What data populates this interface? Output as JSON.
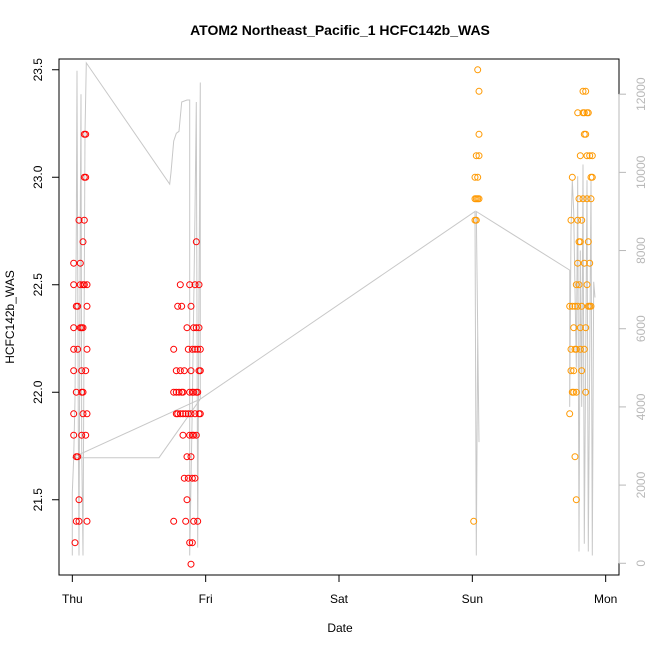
{
  "chart_data": {
    "type": "scatter",
    "title": "ATOM2 Northeast_Pacific_1 HCFC142b_WAS",
    "xlabel": "Date",
    "ylabel": "HCFC142b_WAS",
    "x_ticks": [
      "Thu",
      "Fri",
      "Sat",
      "Sun",
      "Mon"
    ],
    "x_range_days": [
      -0.1,
      4.1
    ],
    "ylim": [
      21.15,
      23.55
    ],
    "y_ticks": [
      "21.5",
      "22.0",
      "22.5",
      "23.0",
      "23.5"
    ],
    "y_tick_values": [
      21.5,
      22.0,
      22.5,
      23.0,
      23.5
    ],
    "y2lim": [
      -300,
      12900
    ],
    "y2_ticks": [
      "0",
      "2000",
      "4000",
      "6000",
      "8000",
      "10000",
      "12000"
    ],
    "y2_tick_values": [
      0,
      2000,
      4000,
      6000,
      8000,
      10000,
      12000
    ],
    "colors": {
      "red_points": "#ff0000",
      "orange_points": "#ff9900",
      "altitude_line": "#c8c8c8",
      "axis": "#000000",
      "right_axis": "#b8b8b8"
    },
    "series": [
      {
        "marker": "open-circle",
        "color": "#ff0000",
        "points": [
          [
            0.01,
            22.6
          ],
          [
            0.01,
            22.5
          ],
          [
            0.01,
            22.3
          ],
          [
            0.01,
            22.2
          ],
          [
            0.01,
            22.1
          ],
          [
            0.01,
            21.9
          ],
          [
            0.01,
            21.8
          ],
          [
            0.02,
            21.3
          ],
          [
            0.03,
            22.4
          ],
          [
            0.03,
            22.0
          ],
          [
            0.03,
            21.7
          ],
          [
            0.03,
            21.4
          ],
          [
            0.04,
            22.4
          ],
          [
            0.04,
            22.2
          ],
          [
            0.04,
            21.7
          ],
          [
            0.05,
            21.5
          ],
          [
            0.05,
            21.4
          ],
          [
            0.05,
            22.8
          ],
          [
            0.06,
            22.6
          ],
          [
            0.06,
            22.5
          ],
          [
            0.06,
            22.3
          ],
          [
            0.07,
            22.3
          ],
          [
            0.07,
            22.1
          ],
          [
            0.07,
            22.0
          ],
          [
            0.07,
            21.8
          ],
          [
            0.08,
            22.7
          ],
          [
            0.08,
            22.5
          ],
          [
            0.08,
            22.3
          ],
          [
            0.08,
            22.0
          ],
          [
            0.08,
            21.9
          ],
          [
            0.09,
            23.2
          ],
          [
            0.09,
            23.0
          ],
          [
            0.09,
            22.8
          ],
          [
            0.09,
            22.5
          ],
          [
            0.1,
            23.2
          ],
          [
            0.1,
            23.0
          ],
          [
            0.1,
            22.1
          ],
          [
            0.1,
            21.8
          ],
          [
            0.11,
            22.5
          ],
          [
            0.11,
            22.4
          ],
          [
            0.11,
            22.2
          ],
          [
            0.11,
            21.9
          ],
          [
            0.11,
            21.4
          ],
          [
            0.76,
            22.2
          ],
          [
            0.76,
            22.0
          ],
          [
            0.76,
            21.4
          ],
          [
            0.78,
            22.1
          ],
          [
            0.78,
            22.0
          ],
          [
            0.78,
            21.9
          ],
          [
            0.79,
            21.9
          ],
          [
            0.79,
            22.4
          ],
          [
            0.8,
            22.0
          ],
          [
            0.81,
            22.1
          ],
          [
            0.81,
            22.5
          ],
          [
            0.81,
            21.9
          ],
          [
            0.82,
            22.4
          ],
          [
            0.82,
            22.0
          ],
          [
            0.83,
            22.0
          ],
          [
            0.83,
            21.9
          ],
          [
            0.83,
            21.8
          ],
          [
            0.84,
            22.1
          ],
          [
            0.84,
            21.6
          ],
          [
            0.85,
            21.9
          ],
          [
            0.85,
            21.4
          ],
          [
            0.86,
            22.3
          ],
          [
            0.86,
            21.7
          ],
          [
            0.86,
            21.5
          ],
          [
            0.87,
            22.2
          ],
          [
            0.87,
            21.9
          ],
          [
            0.87,
            21.6
          ],
          [
            0.88,
            22.5
          ],
          [
            0.88,
            22.0
          ],
          [
            0.88,
            21.8
          ],
          [
            0.88,
            21.3
          ],
          [
            0.89,
            22.4
          ],
          [
            0.89,
            22.1
          ],
          [
            0.89,
            21.9
          ],
          [
            0.89,
            21.7
          ],
          [
            0.89,
            21.2
          ],
          [
            0.9,
            22.2
          ],
          [
            0.9,
            22.0
          ],
          [
            0.9,
            21.8
          ],
          [
            0.9,
            21.6
          ],
          [
            0.9,
            21.3
          ],
          [
            0.91,
            22.3
          ],
          [
            0.91,
            22.0
          ],
          [
            0.91,
            21.8
          ],
          [
            0.91,
            21.4
          ],
          [
            0.92,
            22.5
          ],
          [
            0.92,
            22.2
          ],
          [
            0.92,
            21.9
          ],
          [
            0.92,
            21.6
          ],
          [
            0.93,
            22.7
          ],
          [
            0.93,
            22.3
          ],
          [
            0.93,
            22.0
          ],
          [
            0.93,
            21.8
          ],
          [
            0.94,
            22.2
          ],
          [
            0.94,
            22.0
          ],
          [
            0.94,
            21.4
          ],
          [
            0.95,
            22.5
          ],
          [
            0.95,
            22.3
          ],
          [
            0.95,
            22.1
          ],
          [
            0.95,
            21.9
          ],
          [
            0.96,
            22.2
          ],
          [
            0.96,
            22.1
          ],
          [
            0.96,
            21.9
          ]
        ]
      },
      {
        "marker": "open-circle",
        "color": "#ff9900",
        "points": [
          [
            3.01,
            21.4
          ],
          [
            3.02,
            22.8
          ],
          [
            3.02,
            22.9
          ],
          [
            3.02,
            23.0
          ],
          [
            3.03,
            23.1
          ],
          [
            3.03,
            22.9
          ],
          [
            3.03,
            22.8
          ],
          [
            3.04,
            23.5
          ],
          [
            3.04,
            23.0
          ],
          [
            3.04,
            22.9
          ],
          [
            3.05,
            23.4
          ],
          [
            3.05,
            23.2
          ],
          [
            3.05,
            23.1
          ],
          [
            3.05,
            22.9
          ],
          [
            3.73,
            21.9
          ],
          [
            3.73,
            22.4
          ],
          [
            3.74,
            22.8
          ],
          [
            3.74,
            22.2
          ],
          [
            3.74,
            22.1
          ],
          [
            3.75,
            23.0
          ],
          [
            3.75,
            22.4
          ],
          [
            3.75,
            22.0
          ],
          [
            3.76,
            22.3
          ],
          [
            3.76,
            22.1
          ],
          [
            3.76,
            22.0
          ],
          [
            3.77,
            22.4
          ],
          [
            3.77,
            22.2
          ],
          [
            3.77,
            21.7
          ],
          [
            3.78,
            22.5
          ],
          [
            3.78,
            22.2
          ],
          [
            3.78,
            22.0
          ],
          [
            3.78,
            21.5
          ],
          [
            3.79,
            23.3
          ],
          [
            3.79,
            22.8
          ],
          [
            3.79,
            22.6
          ],
          [
            3.79,
            22.4
          ],
          [
            3.8,
            22.9
          ],
          [
            3.8,
            22.7
          ],
          [
            3.8,
            22.5
          ],
          [
            3.81,
            23.1
          ],
          [
            3.81,
            22.7
          ],
          [
            3.81,
            22.3
          ],
          [
            3.81,
            22.2
          ],
          [
            3.82,
            22.8
          ],
          [
            3.82,
            22.4
          ],
          [
            3.82,
            22.1
          ],
          [
            3.83,
            23.4
          ],
          [
            3.83,
            23.3
          ],
          [
            3.83,
            22.9
          ],
          [
            3.84,
            23.3
          ],
          [
            3.84,
            23.2
          ],
          [
            3.84,
            22.6
          ],
          [
            3.84,
            22.2
          ],
          [
            3.85,
            23.4
          ],
          [
            3.85,
            23.2
          ],
          [
            3.85,
            22.3
          ],
          [
            3.85,
            22.0
          ],
          [
            3.86,
            23.3
          ],
          [
            3.86,
            23.1
          ],
          [
            3.86,
            22.9
          ],
          [
            3.86,
            22.5
          ],
          [
            3.87,
            23.3
          ],
          [
            3.87,
            22.7
          ],
          [
            3.87,
            22.4
          ],
          [
            3.88,
            23.1
          ],
          [
            3.88,
            22.6
          ],
          [
            3.88,
            22.4
          ],
          [
            3.89,
            23.0
          ],
          [
            3.89,
            22.9
          ],
          [
            3.89,
            22.4
          ],
          [
            3.9,
            23.1
          ],
          [
            3.9,
            23.0
          ]
        ]
      }
    ],
    "altitude_line": [
      [
        0.0,
        200
      ],
      [
        0.0,
        1800
      ],
      [
        0.01,
        2700
      ],
      [
        0.02,
        4200
      ],
      [
        0.03,
        8500
      ],
      [
        0.035,
        12600
      ],
      [
        0.045,
        3500
      ],
      [
        0.05,
        200
      ],
      [
        0.06,
        9000
      ],
      [
        0.065,
        12000
      ],
      [
        0.07,
        3000
      ],
      [
        0.08,
        200
      ],
      [
        0.095,
        11000
      ],
      [
        0.105,
        12800
      ],
      [
        0.73,
        9700
      ],
      [
        0.74,
        10000
      ],
      [
        0.76,
        10800
      ],
      [
        0.78,
        11000
      ],
      [
        0.8,
        11050
      ],
      [
        0.82,
        11800
      ],
      [
        0.86,
        11850
      ],
      [
        0.88,
        11850
      ],
      [
        0.88,
        200
      ],
      [
        0.9,
        4000
      ],
      [
        0.92,
        9000
      ],
      [
        0.93,
        11800
      ],
      [
        0.94,
        400
      ],
      [
        0.95,
        7000
      ],
      [
        0.96,
        12300
      ],
      [
        0.96,
        4200
      ],
      [
        0.65,
        2700
      ],
      [
        0.0,
        2700
      ],
      [
        0.96,
        4200
      ],
      [
        3.02,
        9000
      ],
      [
        3.03,
        200
      ],
      [
        3.04,
        5900
      ],
      [
        3.05,
        3100
      ],
      [
        3.03,
        9000
      ],
      [
        3.73,
        7500
      ],
      [
        3.73,
        4000
      ],
      [
        3.74,
        8500
      ],
      [
        3.75,
        9800
      ],
      [
        3.76,
        9000
      ],
      [
        3.77,
        7000
      ],
      [
        3.78,
        5000
      ],
      [
        3.79,
        9900
      ],
      [
        3.8,
        300
      ],
      [
        3.81,
        8000
      ],
      [
        3.82,
        4000
      ],
      [
        3.83,
        10200
      ],
      [
        3.84,
        500
      ],
      [
        3.86,
        9800
      ],
      [
        3.87,
        300
      ],
      [
        3.88,
        5200
      ],
      [
        3.89,
        9800
      ],
      [
        3.9,
        200
      ],
      [
        3.91,
        7200
      ],
      [
        3.92,
        6800
      ]
    ]
  }
}
